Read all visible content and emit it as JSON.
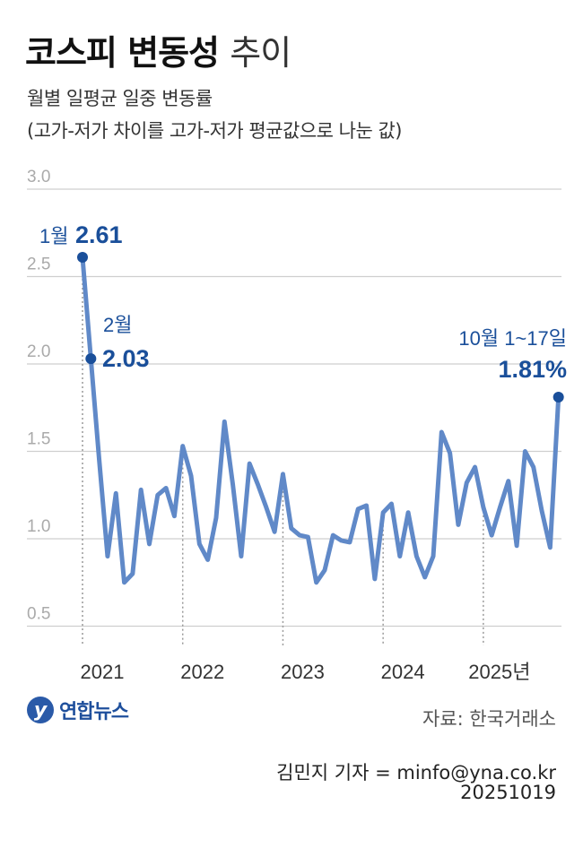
{
  "header": {
    "title_bold": "코스피 변동성",
    "title_light": "추이",
    "subtitle1": "월별 일평균 일중 변동률",
    "subtitle2": "(고가-저가 차이를 고가-저가 평균값으로 나눈 값)"
  },
  "footer": {
    "logo_text": "연합뉴스",
    "logo_mark": "y",
    "source": "자료: 한국거래소",
    "reporter": "김민지 기자 = minfo@yna.co.kr",
    "date": "20251019"
  },
  "colors": {
    "line": "#6089c8",
    "accent": "#1a4f9a",
    "grid": "#cfcfcf",
    "tick": "#aaaaaa"
  },
  "chart_data": {
    "type": "line",
    "title": "코스피 변동성 추이",
    "ylabel": "%",
    "ylim": [
      0.5,
      3.0
    ],
    "yticks": [
      3.0,
      2.5,
      2.0,
      1.5,
      1.0,
      0.5
    ],
    "ytick_labels": [
      "3.0",
      "2.5",
      "2.0",
      "1.5",
      "1.0",
      "0.5"
    ],
    "xtick_labels": [
      "2021",
      "2022",
      "2023",
      "2024",
      "2025년"
    ],
    "start": "2021-01",
    "values": [
      2.61,
      2.03,
      1.45,
      0.9,
      1.26,
      0.75,
      0.8,
      1.28,
      0.97,
      1.25,
      1.29,
      1.13,
      1.53,
      1.36,
      0.97,
      0.88,
      1.12,
      1.67,
      1.31,
      0.9,
      1.43,
      1.31,
      1.18,
      1.04,
      1.37,
      1.06,
      1.02,
      1.01,
      0.75,
      0.82,
      1.02,
      0.99,
      0.98,
      1.17,
      1.19,
      0.77,
      1.15,
      1.2,
      0.9,
      1.15,
      0.9,
      0.78,
      0.9,
      1.61,
      1.49,
      1.08,
      1.32,
      1.41,
      1.18,
      1.02,
      1.18,
      1.33,
      0.96,
      1.5,
      1.41,
      1.16,
      0.95,
      1.81
    ],
    "annotations": [
      {
        "index": 0,
        "label": "1월",
        "value_text": "2.61"
      },
      {
        "index": 1,
        "label": "2월",
        "value_text": "2.03"
      },
      {
        "index": 57,
        "label": "10월 1~17일",
        "value_text": "1.81%"
      }
    ]
  }
}
